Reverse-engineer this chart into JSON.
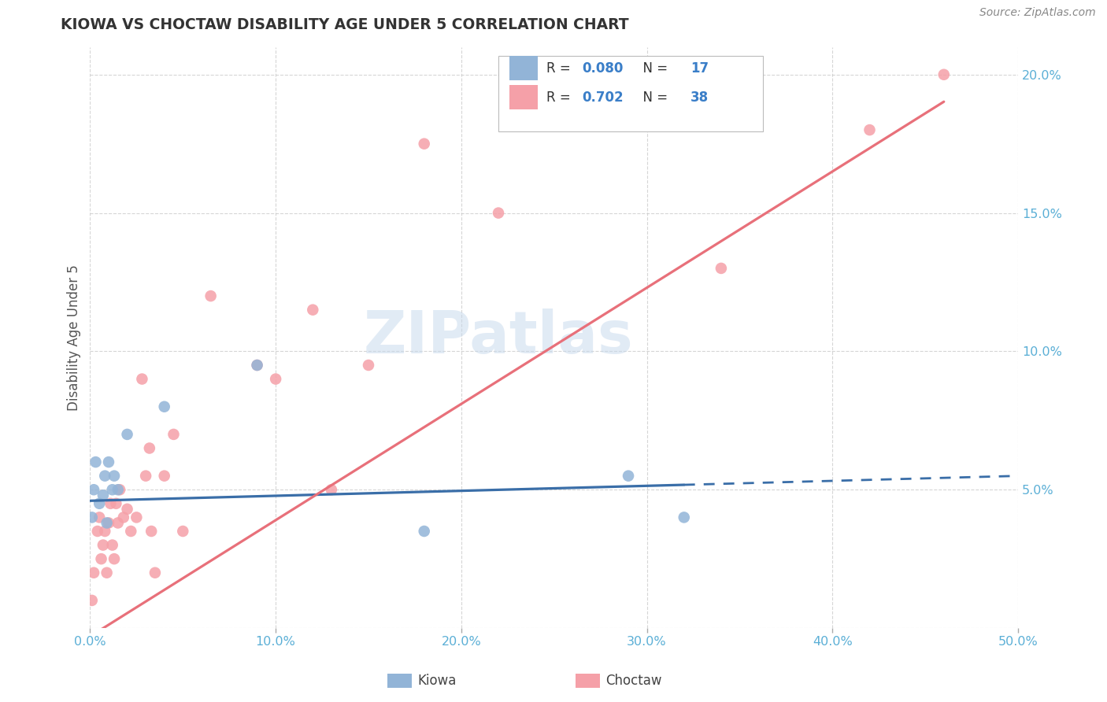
{
  "title": "KIOWA VS CHOCTAW DISABILITY AGE UNDER 5 CORRELATION CHART",
  "source": "Source: ZipAtlas.com",
  "ylabel_label": "Disability Age Under 5",
  "x_min": 0.0,
  "x_max": 0.5,
  "y_min": 0.0,
  "y_max": 0.21,
  "x_ticks": [
    0.0,
    0.1,
    0.2,
    0.3,
    0.4,
    0.5
  ],
  "x_tick_labels": [
    "0.0%",
    "10.0%",
    "20.0%",
    "30.0%",
    "40.0%",
    "50.0%"
  ],
  "y_ticks": [
    0.0,
    0.05,
    0.1,
    0.15,
    0.2
  ],
  "y_tick_labels": [
    "",
    "5.0%",
    "10.0%",
    "15.0%",
    "20.0%"
  ],
  "kiowa_color": "#92B4D7",
  "choctaw_color": "#F5A0A8",
  "kiowa_line_color": "#3A6EA8",
  "choctaw_line_color": "#E8707A",
  "kiowa_R": 0.08,
  "kiowa_N": 17,
  "choctaw_R": 0.702,
  "choctaw_N": 38,
  "watermark": "ZIPatlas",
  "kiowa_x": [
    0.001,
    0.002,
    0.003,
    0.005,
    0.007,
    0.008,
    0.009,
    0.01,
    0.012,
    0.013,
    0.015,
    0.02,
    0.04,
    0.09,
    0.18,
    0.29,
    0.32
  ],
  "kiowa_y": [
    0.04,
    0.05,
    0.06,
    0.045,
    0.048,
    0.055,
    0.038,
    0.06,
    0.05,
    0.055,
    0.05,
    0.07,
    0.08,
    0.095,
    0.035,
    0.055,
    0.04
  ],
  "choctaw_x": [
    0.001,
    0.002,
    0.004,
    0.005,
    0.006,
    0.007,
    0.008,
    0.009,
    0.01,
    0.011,
    0.012,
    0.013,
    0.014,
    0.015,
    0.016,
    0.018,
    0.02,
    0.022,
    0.025,
    0.028,
    0.03,
    0.032,
    0.033,
    0.035,
    0.04,
    0.045,
    0.05,
    0.065,
    0.09,
    0.1,
    0.12,
    0.13,
    0.15,
    0.18,
    0.22,
    0.34,
    0.42,
    0.46
  ],
  "choctaw_y": [
    0.01,
    0.02,
    0.035,
    0.04,
    0.025,
    0.03,
    0.035,
    0.02,
    0.038,
    0.045,
    0.03,
    0.025,
    0.045,
    0.038,
    0.05,
    0.04,
    0.043,
    0.035,
    0.04,
    0.09,
    0.055,
    0.065,
    0.035,
    0.02,
    0.055,
    0.07,
    0.035,
    0.12,
    0.095,
    0.09,
    0.115,
    0.05,
    0.095,
    0.175,
    0.15,
    0.13,
    0.18,
    0.2
  ],
  "kiowa_intercept": 0.046,
  "kiowa_slope": 0.018,
  "choctaw_intercept": -0.003,
  "choctaw_slope": 0.42,
  "tick_color": "#5BAFD6",
  "grid_color": "#CCCCCC",
  "title_color": "#333333",
  "source_color": "#888888",
  "ylabel_color": "#555555"
}
